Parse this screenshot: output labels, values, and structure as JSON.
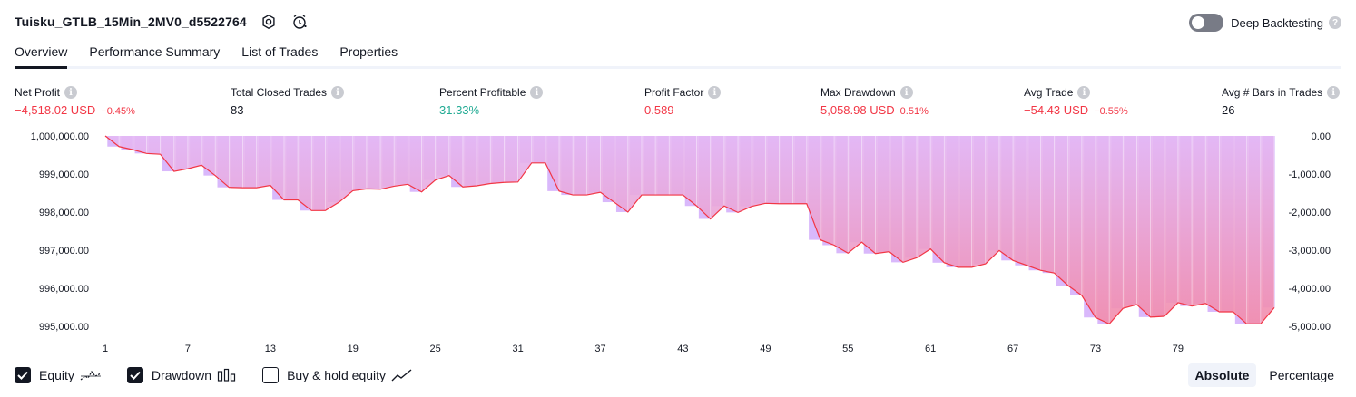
{
  "header": {
    "title": "Tuisku_GTLB_15Min_2MV0_d5522764",
    "deep_backtesting_label": "Deep Backtesting",
    "deep_backtesting_on": false
  },
  "tabs": [
    {
      "label": "Overview",
      "active": true
    },
    {
      "label": "Performance Summary",
      "active": false
    },
    {
      "label": "List of Trades",
      "active": false
    },
    {
      "label": "Properties",
      "active": false
    }
  ],
  "metrics": {
    "net_profit": {
      "label": "Net Profit",
      "value": "−4,518.02 USD",
      "pct": "−0.45%"
    },
    "total_closed_trades": {
      "label": "Total Closed Trades",
      "value": "83"
    },
    "percent_profitable": {
      "label": "Percent Profitable",
      "value": "31.33%"
    },
    "profit_factor": {
      "label": "Profit Factor",
      "value": "0.589"
    },
    "max_drawdown": {
      "label": "Max Drawdown",
      "value": "5,058.98 USD",
      "pct": "0.51%"
    },
    "avg_trade": {
      "label": "Avg Trade",
      "value": "−54.43 USD",
      "pct": "−0.55%"
    },
    "avg_bars": {
      "label": "Avg # Bars in Trades",
      "value": "26"
    }
  },
  "colors": {
    "negative": "#f23645",
    "positive": "#22ab94",
    "equity_line": "#f23645",
    "equity_fill_top": "#e4b8f5",
    "equity_fill_bottom": "#f28cab",
    "drawdown_bar": "#d9b8fb"
  },
  "chart_data": {
    "type": "area",
    "x_ticks": [
      "1",
      "7",
      "13",
      "19",
      "25",
      "31",
      "37",
      "43",
      "49",
      "55",
      "61",
      "67",
      "73",
      "79"
    ],
    "left_axis": {
      "ticks": [
        "1,000,000.00",
        "999,000.00",
        "998,000.00",
        "997,000.00",
        "996,000.00",
        "995,000.00"
      ],
      "range": [
        994760,
        1000000
      ]
    },
    "right_axis": {
      "ticks": [
        "0.00",
        "-1,000.00",
        "-2,000.00",
        "-3,000.00",
        "-4,000.00",
        "-5,000.00"
      ],
      "range": [
        -5240,
        0
      ]
    },
    "series": [
      {
        "name": "Equity",
        "values": [
          1000000,
          999720,
          999640,
          999540,
          999520,
          999070,
          999140,
          999230,
          998960,
          998650,
          998640,
          998640,
          998700,
          998320,
          998320,
          998040,
          998040,
          998260,
          998560,
          998610,
          998600,
          998680,
          998730,
          998530,
          998840,
          998960,
          998660,
          998690,
          998750,
          998780,
          998790,
          999290,
          999290,
          998550,
          998450,
          998450,
          998520,
          998260,
          998000,
          998450,
          998450,
          998450,
          998450,
          998160,
          997820,
          998160,
          997990,
          998150,
          998230,
          998220,
          998220,
          998220,
          997270,
          997130,
          996920,
          997210,
          996910,
          996960,
          996680,
          996800,
          997030,
          996670,
          996550,
          996550,
          996640,
          996990,
          996730,
          996600,
          996470,
          996400,
          996070,
          995810,
          995230,
          995060,
          995470,
          995570,
          995240,
          995260,
          995620,
          995530,
          995600,
          995380,
          995380,
          995060,
          995060,
          995490
        ]
      },
      {
        "name": "Drawdown",
        "values": [
          0,
          -280,
          -360,
          -460,
          -480,
          -930,
          -860,
          -770,
          -1040,
          -1350,
          -1360,
          -1360,
          -1300,
          -1680,
          -1680,
          -1960,
          -1960,
          -1740,
          -1440,
          -1390,
          -1400,
          -1320,
          -1270,
          -1470,
          -1160,
          -1040,
          -1340,
          -1310,
          -1250,
          -1220,
          -1210,
          -710,
          -710,
          -1450,
          -1550,
          -1550,
          -1480,
          -1740,
          -2000,
          -1550,
          -1550,
          -1550,
          -1550,
          -1840,
          -2180,
          -1840,
          -2010,
          -1850,
          -1770,
          -1780,
          -1780,
          -1780,
          -2730,
          -2870,
          -3080,
          -2790,
          -3090,
          -3040,
          -3320,
          -3200,
          -2970,
          -3330,
          -3450,
          -3450,
          -3360,
          -3010,
          -3270,
          -3400,
          -3530,
          -3600,
          -3930,
          -4190,
          -4770,
          -4940,
          -4530,
          -4430,
          -4760,
          -4740,
          -4380,
          -4470,
          -4400,
          -4620,
          -4620,
          -4940,
          -4940,
          -4510
        ]
      }
    ]
  },
  "bottom_bar": {
    "equity_label": "Equity",
    "equity_checked": true,
    "drawdown_label": "Drawdown",
    "drawdown_checked": true,
    "buyhold_label": "Buy & hold equity",
    "buyhold_checked": false,
    "absolute_label": "Absolute",
    "percentage_label": "Percentage",
    "active_scale": "Absolute"
  }
}
